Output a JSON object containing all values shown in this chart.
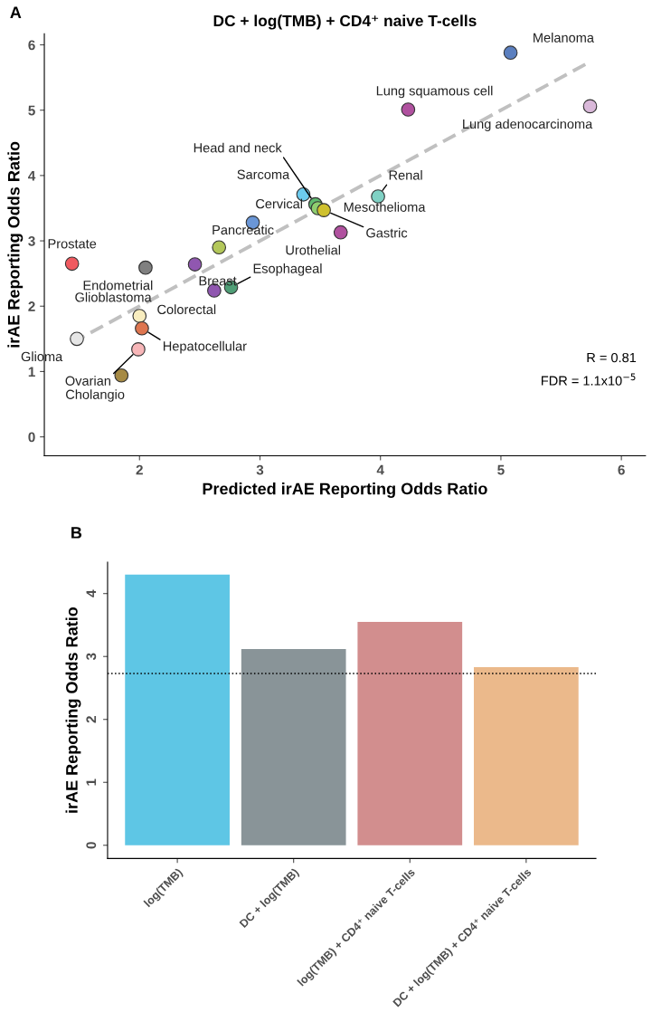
{
  "chart_data": [
    {
      "type": "scatter",
      "title": "DC + log(TMB) + CD4⁺ naive T-cells",
      "xlabel": "Predicted irAE Reporting Odds Ratio",
      "ylabel": "irAE Reporting Odds Ratio",
      "xlim": [
        1.21,
        6.2
      ],
      "ylim": [
        -0.29,
        6.17
      ],
      "xticks": [
        2,
        3,
        4,
        5,
        6
      ],
      "yticks": [
        0,
        1,
        2,
        3,
        4,
        5,
        6
      ],
      "grid": false,
      "series": [
        {
          "type": "scatter",
          "marker": "circle",
          "x": [
            5.08,
            4.23,
            5.74,
            3.98,
            3.36,
            3.46,
            3.48,
            3.53,
            3.67,
            2.94,
            2.66,
            1.44,
            2.05,
            2.46,
            2.62,
            2.76,
            2.0,
            2.02,
            1.99,
            1.48,
            1.85
          ],
          "values": [
            5.88,
            5.01,
            5.06,
            3.68,
            3.71,
            3.56,
            3.5,
            3.47,
            3.13,
            3.28,
            2.9,
            2.65,
            2.59,
            2.64,
            2.24,
            2.29,
            1.85,
            1.66,
            1.34,
            1.5,
            0.94
          ],
          "colors": [
            "#5b7fbf",
            "#b0519f",
            "#d9b8d9",
            "#7fd1c4",
            "#6ccbee",
            "#5fba6e",
            "#8fce6f",
            "#cfc12f",
            "#b0519f",
            "#6a96d6",
            "#b3c75a",
            "#f05a60",
            "#808080",
            "#9057b0",
            "#9057b0",
            "#4f9e76",
            "#f8edbf",
            "#de7650",
            "#f7b6b8",
            "#e6e6e6",
            "#a68a44"
          ]
        },
        {
          "type": "line",
          "x": [
            1.44,
            5.73
          ],
          "values": [
            1.44,
            5.73
          ],
          "color": "#c0c0c0",
          "line_style": "dashed"
        }
      ],
      "annotations": [
        "A",
        {
          "text": "Melanoma",
          "x": 5.08,
          "y": 5.88
        },
        {
          "text": "Lung squamous cell",
          "x": 4.23,
          "y": 5.01
        },
        {
          "text": "Lung adenocarcinoma",
          "x": 5.74,
          "y": 5.06
        },
        {
          "text": "Renal",
          "x": 3.98,
          "y": 3.68
        },
        {
          "text": "Sarcoma",
          "x": 3.36,
          "y": 3.71
        },
        {
          "text": "Head and neck",
          "x": 3.46,
          "y": 3.56
        },
        {
          "text": "Mesothelioma",
          "x": 3.48,
          "y": 3.5
        },
        {
          "text": "Gastric",
          "x": 3.53,
          "y": 3.47
        },
        {
          "text": "Urothelial",
          "x": 3.67,
          "y": 3.13
        },
        {
          "text": "Cervical",
          "x": 2.94,
          "y": 3.28
        },
        {
          "text": "Pancreatic",
          "x": 2.66,
          "y": 2.9
        },
        {
          "text": "Prostate",
          "x": 1.44,
          "y": 2.65
        },
        {
          "text": "Endometrial",
          "x": 2.05,
          "y": 2.59
        },
        {
          "text": "Breast",
          "x": 2.46,
          "y": 2.64
        },
        {
          "text": "Colorectal",
          "x": 2.62,
          "y": 2.24
        },
        {
          "text": "Esophageal",
          "x": 2.76,
          "y": 2.29
        },
        {
          "text": "Glioblastoma",
          "x": 2.0,
          "y": 1.85
        },
        {
          "text": "Hepatocellular",
          "x": 2.02,
          "y": 1.66
        },
        {
          "text": "Ovarian",
          "x": 1.99,
          "y": 1.34
        },
        {
          "text": "Glioma",
          "x": 1.48,
          "y": 1.5
        },
        {
          "text": "Cholangio",
          "x": 1.85,
          "y": 0.94
        },
        "R = 0.81",
        "FDR = 1.1x10$^{−5}$"
      ]
    },
    {
      "type": "bar",
      "ylabel": "irAE Reporting Odds Ratio",
      "categories": [
        "log(TMB)",
        "DC + log(TMB)",
        "log(TMB) + CD4⁺ naive T-cells",
        "DC + log(TMB) + CD4⁺ naive T-cells"
      ],
      "values": [
        4.3,
        3.12,
        3.55,
        2.83
      ],
      "colors": [
        "#5ec6e5",
        "#899498",
        "#d28e8e",
        "#ebb98b"
      ],
      "ylim": [
        -0.21,
        4.5
      ],
      "yticks": [
        0,
        1,
        2,
        3,
        4
      ],
      "grid": false,
      "ref_lines": [
        {
          "axis": "y",
          "value": 2.73,
          "color": "#000000",
          "line_style": "dotted"
        }
      ],
      "annotations": [
        "B"
      ]
    }
  ]
}
